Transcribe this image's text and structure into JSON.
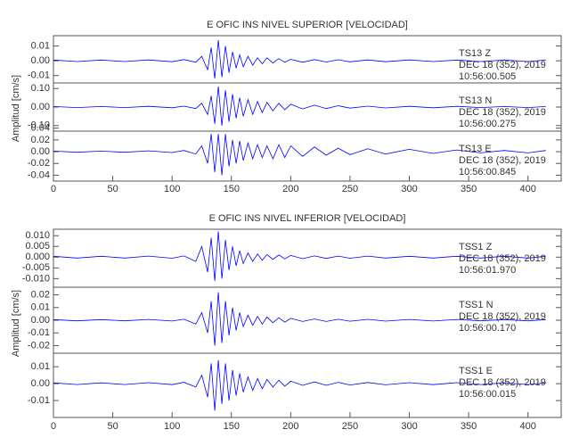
{
  "chart_data": [
    {
      "type": "line",
      "title": "E OFIC INS NIVEL SUPERIOR [VELOCIDAD]",
      "ylabel": "Amplitud [cm/s]",
      "color": "#0000ff",
      "xlim": [
        0,
        428
      ],
      "xticks": [
        0,
        50,
        100,
        150,
        200,
        250,
        300,
        350,
        400
      ],
      "x": [
        0,
        20,
        40,
        60,
        80,
        100,
        110,
        120,
        125,
        130,
        133,
        136,
        139,
        142,
        145,
        148,
        151,
        154,
        157,
        160,
        164,
        168,
        172,
        176,
        180,
        185,
        190,
        195,
        200,
        210,
        220,
        230,
        240,
        250,
        265,
        280,
        300,
        320,
        340,
        360,
        380,
        400,
        415
      ],
      "panels": [
        {
          "station": "TS13  Z",
          "date": "DEC 18 (352), 2019",
          "time": "10:56:00.505",
          "ylim": [
            -0.015,
            0.017
          ],
          "yticks": [
            0.01,
            {
              "value": 0,
              "label": "0.00"
            },
            -0.01
          ],
          "values": [
            0.0005,
            -0.0005,
            0.0005,
            -0.0005,
            0.0006,
            -0.0006,
            0.0008,
            -0.001,
            0.003,
            -0.006,
            0.009,
            -0.012,
            0.014,
            -0.011,
            0.01,
            -0.008,
            0.006,
            -0.005,
            0.004,
            -0.004,
            0.003,
            -0.003,
            0.002,
            -0.002,
            0.002,
            -0.0015,
            0.0015,
            -0.001,
            0.001,
            -0.001,
            0.0008,
            -0.0008,
            0.0007,
            -0.0007,
            0.0006,
            -0.0006,
            0.0006,
            -0.0005,
            0.0005,
            -0.0005,
            0.0005,
            -0.0005,
            0.0005
          ]
        },
        {
          "station": "TS13  N",
          "date": "DEC 18 (352), 2019",
          "time": "10:56:00.275",
          "ylim": [
            -0.13,
            0.13
          ],
          "yticks": [
            {
              "value": 0.1,
              "label": "0.10"
            },
            {
              "value": 0,
              "label": "0.00"
            },
            {
              "value": -0.1,
              "label": "-0.10"
            }
          ],
          "values": [
            0.003,
            -0.003,
            0.003,
            -0.003,
            0.004,
            -0.004,
            0.005,
            -0.008,
            0.02,
            -0.04,
            0.06,
            -0.09,
            0.11,
            -0.1,
            0.09,
            -0.08,
            0.07,
            -0.06,
            0.05,
            -0.05,
            0.04,
            -0.04,
            0.03,
            -0.03,
            0.025,
            -0.02,
            0.02,
            -0.015,
            0.015,
            -0.01,
            0.01,
            -0.008,
            0.007,
            -0.006,
            0.005,
            -0.005,
            0.004,
            -0.004,
            0.004,
            -0.003,
            0.003,
            -0.003,
            0.003
          ]
        },
        {
          "station": "TS13  E",
          "date": "DEC 18 (352), 2019",
          "time": "10:56:00.845",
          "ylim": [
            -0.05,
            0.035
          ],
          "yticks": [
            0.04,
            0.02,
            {
              "value": 0,
              "label": "0.00"
            },
            -0.02,
            -0.04
          ],
          "values": [
            0.001,
            -0.001,
            0.001,
            -0.001,
            0.0015,
            -0.0015,
            0.002,
            -0.004,
            0.01,
            -0.02,
            0.03,
            -0.035,
            0.03,
            -0.04,
            0.03,
            -0.025,
            0.02,
            -0.02,
            0.018,
            -0.015,
            0.015,
            -0.012,
            0.012,
            -0.01,
            0.01,
            -0.012,
            0.012,
            -0.01,
            0.01,
            -0.008,
            0.008,
            -0.006,
            0.006,
            -0.005,
            0.005,
            -0.004,
            0.004,
            -0.003,
            0.003,
            -0.002,
            0.002,
            -0.002,
            0.002
          ]
        }
      ]
    },
    {
      "type": "line",
      "title": "E OFIC INS NIVEL INFERIOR [VELOCIDAD]",
      "ylabel": "Amplitud [cm/s]",
      "color": "#0000ff",
      "xlim": [
        0,
        428
      ],
      "xticks": [
        0,
        50,
        100,
        150,
        200,
        250,
        300,
        350,
        400
      ],
      "x": [
        0,
        20,
        40,
        60,
        80,
        100,
        110,
        120,
        125,
        130,
        133,
        136,
        139,
        142,
        145,
        148,
        151,
        154,
        157,
        160,
        164,
        168,
        172,
        176,
        180,
        185,
        190,
        195,
        200,
        210,
        220,
        230,
        240,
        250,
        265,
        280,
        300,
        320,
        340,
        360,
        380,
        400,
        415
      ],
      "panels": [
        {
          "station": "TSS1  Z",
          "date": "DEC 18 (352), 2019",
          "time": "10:56:01.970",
          "ylim": [
            -0.014,
            0.013
          ],
          "yticks": [
            {
              "value": 0.01,
              "label": "0.010"
            },
            {
              "value": 0.005,
              "label": "0.005"
            },
            {
              "value": 0,
              "label": "0.000"
            },
            {
              "value": -0.005,
              "label": "-0.005"
            },
            {
              "value": -0.01,
              "label": "-0.010"
            }
          ],
          "values": [
            0.0004,
            -0.0004,
            0.0004,
            -0.0004,
            0.0005,
            -0.0005,
            0.0006,
            -0.002,
            0.005,
            -0.007,
            0.009,
            -0.011,
            0.012,
            -0.01,
            0.008,
            -0.006,
            0.005,
            -0.004,
            0.003,
            -0.003,
            0.002,
            -0.002,
            0.0015,
            -0.0015,
            0.0012,
            -0.001,
            0.001,
            -0.0008,
            0.0008,
            -0.0007,
            0.0006,
            -0.0006,
            0.0005,
            -0.0005,
            0.0005,
            -0.0004,
            0.0004,
            -0.0004,
            0.0004,
            -0.0004,
            0.0004,
            -0.0004,
            0.0004
          ]
        },
        {
          "station": "TSS1  N",
          "date": "DEC 18 (352), 2019",
          "time": "10:56:00.170",
          "ylim": [
            -0.026,
            0.026
          ],
          "yticks": [
            0.02,
            0.01,
            {
              "value": 0,
              "label": "0.00"
            },
            -0.01,
            -0.02
          ],
          "values": [
            0.0005,
            -0.0005,
            0.0005,
            -0.0005,
            0.0006,
            -0.0006,
            0.0008,
            -0.003,
            0.006,
            -0.01,
            0.015,
            -0.02,
            0.022,
            -0.018,
            0.015,
            -0.012,
            0.01,
            -0.008,
            0.006,
            -0.005,
            0.004,
            -0.004,
            0.003,
            -0.003,
            0.0025,
            -0.002,
            0.002,
            -0.0015,
            0.0015,
            -0.001,
            0.001,
            -0.001,
            0.0008,
            -0.0008,
            0.0007,
            -0.0007,
            0.0006,
            -0.0006,
            0.0006,
            -0.0005,
            0.0005,
            -0.0005,
            0.0005
          ]
        },
        {
          "station": "TSS1  E",
          "date": "DEC 18 (352), 2019",
          "time": "10:56:00.015",
          "ylim": [
            -0.02,
            0.018
          ],
          "yticks": [
            0.01,
            {
              "value": 0,
              "label": "0.00"
            },
            -0.01
          ],
          "values": [
            0.0005,
            -0.0005,
            0.0005,
            -0.0005,
            0.0006,
            -0.0006,
            0.0008,
            -0.002,
            0.005,
            -0.008,
            0.012,
            -0.016,
            0.014,
            -0.012,
            0.012,
            -0.01,
            0.008,
            -0.007,
            0.006,
            -0.005,
            0.004,
            -0.004,
            0.003,
            -0.003,
            0.0025,
            -0.002,
            0.002,
            -0.0015,
            0.0015,
            -0.001,
            0.001,
            -0.001,
            0.0008,
            -0.0008,
            0.0007,
            -0.0007,
            0.0006,
            -0.0006,
            0.0006,
            -0.0005,
            0.0005,
            -0.0005,
            0.0005
          ]
        }
      ]
    }
  ]
}
